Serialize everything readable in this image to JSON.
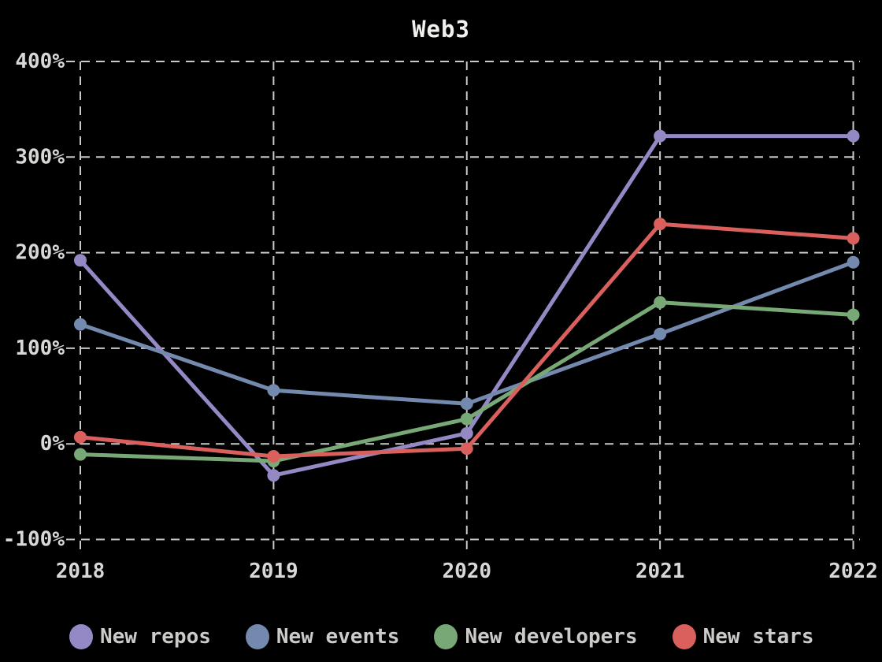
{
  "title": "Web3",
  "colors": {
    "background": "#000000",
    "grid": "#c9c9c9",
    "title_text": "#f2f1ef",
    "tick_text": "#d9d8d6",
    "legend_text": "#cccbc9",
    "series_new_repos": "#9489c4",
    "series_new_events": "#7389ae",
    "series_new_developers": "#79a877",
    "series_new_stars": "#d9605c"
  },
  "chart_data": {
    "type": "line",
    "title": "Web3",
    "x": [
      2018,
      2019,
      2020,
      2021,
      2022
    ],
    "x_tick_labels": [
      "2018",
      "2019",
      "2020",
      "2021",
      "2022"
    ],
    "series": [
      {
        "name": "New repos",
        "color": "#9489c4",
        "values": [
          192,
          -33,
          11,
          322,
          322
        ]
      },
      {
        "name": "New events",
        "color": "#7389ae",
        "values": [
          125,
          56,
          42,
          115,
          190
        ]
      },
      {
        "name": "New developers",
        "color": "#79a877",
        "values": [
          -11,
          -18,
          26,
          148,
          135
        ]
      },
      {
        "name": "New stars",
        "color": "#d9605c",
        "values": [
          7,
          -13,
          -5,
          230,
          215
        ]
      }
    ],
    "xlabel": "",
    "ylabel": "",
    "ylim": [
      -100,
      400
    ],
    "yticks": [
      400,
      300,
      200,
      100,
      0,
      -100
    ],
    "ytick_labels": [
      "400%",
      "300%",
      "200%",
      "100%",
      "0%",
      "-100%"
    ],
    "grid": "dashed",
    "marker": "circle",
    "legend_position": "bottom",
    "legend_entries": [
      "New repos",
      "New events",
      "New developers",
      "New stars"
    ]
  }
}
